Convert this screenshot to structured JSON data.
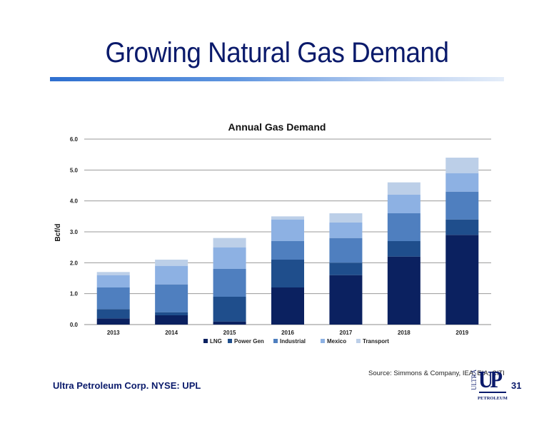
{
  "slide": {
    "title": "Growing Natural Gas Demand",
    "source": "Source:  Simmons & Company, IEA, EIA, CITI",
    "footer": "Ultra Petroleum Corp. NYSE: UPL",
    "page_number": "31",
    "logo_text": {
      "vertical": "ULTRA",
      "big": "UP",
      "bottom": "PETROLEUM"
    }
  },
  "colors": {
    "title": "#0a1a6b",
    "LNG": "#0b2160",
    "Power Gen": "#1f4e8c",
    "Industrial": "#4f7fbf",
    "Mexico": "#8db1e3",
    "Transport": "#bccfe8"
  },
  "chart_data": {
    "type": "bar",
    "stacked": true,
    "title": "Annual Gas Demand",
    "ylabel": "Bcf/d",
    "xlabel": "",
    "ylim": [
      0,
      6
    ],
    "yticks": [
      "0.0",
      "1.0",
      "2.0",
      "3.0",
      "4.0",
      "5.0",
      "6.0"
    ],
    "grid": true,
    "legend_position": "bottom",
    "categories": [
      "2013",
      "2014",
      "2015",
      "2016",
      "2017",
      "2018",
      "2019"
    ],
    "series": [
      {
        "name": "LNG",
        "values": [
          0.2,
          0.3,
          0.1,
          1.2,
          1.6,
          2.2,
          2.9
        ]
      },
      {
        "name": "Power Gen",
        "values": [
          0.3,
          0.1,
          0.8,
          0.9,
          0.4,
          0.5,
          0.5
        ]
      },
      {
        "name": "Industrial",
        "values": [
          0.7,
          0.9,
          0.9,
          0.6,
          0.8,
          0.9,
          0.9
        ]
      },
      {
        "name": "Mexico",
        "values": [
          0.4,
          0.6,
          0.7,
          0.7,
          0.5,
          0.6,
          0.6
        ]
      },
      {
        "name": "Transport",
        "values": [
          0.1,
          0.2,
          0.3,
          0.1,
          0.3,
          0.4,
          0.5
        ]
      }
    ]
  }
}
